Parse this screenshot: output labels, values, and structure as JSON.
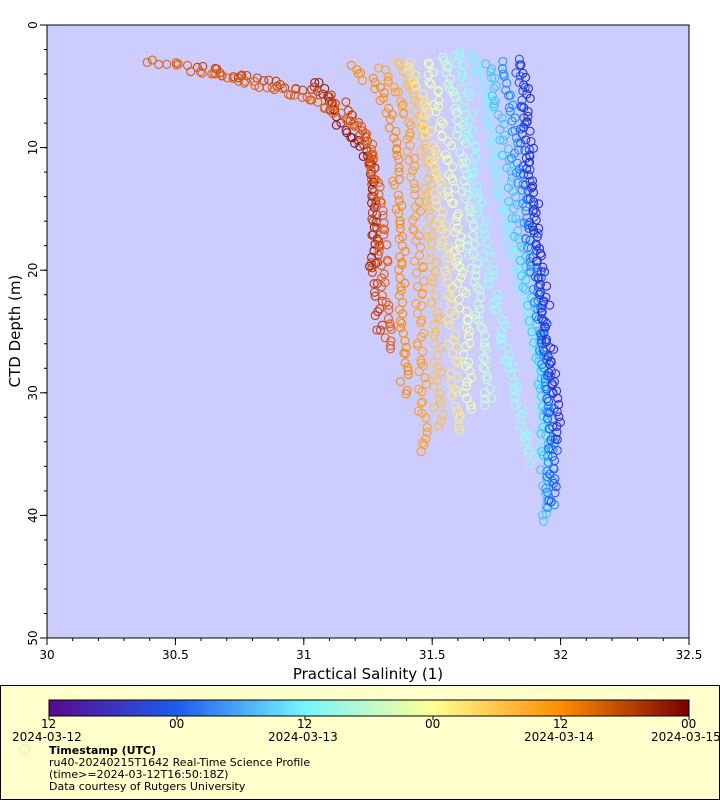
{
  "chart_data": {
    "type": "scatter",
    "title": "",
    "xlabel": "Practical Salinity (1)",
    "ylabel": "CTD Depth (m)",
    "xlim": [
      30,
      32.5
    ],
    "ylim": [
      0,
      50
    ],
    "y_inverted": true,
    "grid": false,
    "marker": "open-circle",
    "background_color": "#ccccff",
    "x_ticks": [
      "30",
      "30.5",
      "31",
      "31.5",
      "32",
      "32.5"
    ],
    "y_ticks": [
      "0",
      "10",
      "20",
      "30",
      "40",
      "50"
    ],
    "color_by": "Timestamp (UTC)",
    "colormap": [
      "#5a0a8c",
      "#1e5cf0",
      "#78f5ff",
      "#ffff96",
      "#ff8c00",
      "#780000"
    ],
    "colorbar_range": [
      "2024-03-12T12:00",
      "2024-03-15T00:00"
    ],
    "colorbar_time_ticks": [
      "12",
      "00",
      "12",
      "00",
      "12",
      "00"
    ],
    "colorbar_date_ticks": [
      "2024-03-12",
      "2024-03-13",
      "2024-03-14",
      "2024-03-15"
    ],
    "series": [
      {
        "time": "2024-03-14T23:00",
        "color": "#9a1800",
        "points": [
          [
            31.06,
            4.5
          ],
          [
            31.08,
            5.5
          ],
          [
            31.1,
            6.5
          ],
          [
            31.12,
            7.5
          ],
          [
            31.15,
            8.5
          ],
          [
            31.2,
            9.5
          ],
          [
            31.24,
            10.5
          ],
          [
            31.26,
            11.5
          ],
          [
            31.27,
            13
          ],
          [
            31.27,
            14.5
          ],
          [
            31.27,
            16
          ],
          [
            31.27,
            17.5
          ],
          [
            31.27,
            19
          ],
          [
            31.27,
            19.8
          ]
        ]
      },
      {
        "time": "2024-03-14T22:00",
        "color": "#c84000",
        "points": [
          [
            30.6,
            3.5
          ],
          [
            30.75,
            4.2
          ],
          [
            30.9,
            4.8
          ],
          [
            31.05,
            5.2
          ],
          [
            31.15,
            6.5
          ],
          [
            31.2,
            8.0
          ],
          [
            31.24,
            9.5
          ],
          [
            31.26,
            11.5
          ],
          [
            31.27,
            14
          ],
          [
            31.28,
            17
          ],
          [
            31.28,
            20
          ],
          [
            31.29,
            23
          ],
          [
            31.3,
            25.5
          ]
        ]
      },
      {
        "time": "2024-03-14T19:00",
        "color": "#e46010",
        "points": [
          [
            30.4,
            3.0
          ],
          [
            30.55,
            3.5
          ],
          [
            30.7,
            4.2
          ],
          [
            30.85,
            5.0
          ],
          [
            31.0,
            6.0
          ],
          [
            31.12,
            7.0
          ],
          [
            31.22,
            8.5
          ],
          [
            31.26,
            10
          ],
          [
            31.28,
            13
          ],
          [
            31.3,
            16
          ],
          [
            31.31,
            19
          ],
          [
            31.32,
            22
          ],
          [
            31.33,
            25
          ],
          [
            31.34,
            27
          ]
        ]
      },
      {
        "time": "2024-03-14T16:00",
        "color": "#ff8c00",
        "points": [
          [
            31.2,
            3.5
          ],
          [
            31.28,
            5
          ],
          [
            31.33,
            7
          ],
          [
            31.35,
            9
          ],
          [
            31.36,
            12
          ],
          [
            31.37,
            15
          ],
          [
            31.38,
            18
          ],
          [
            31.38,
            21
          ],
          [
            31.39,
            24
          ],
          [
            31.39,
            27
          ],
          [
            31.39,
            30.5
          ]
        ]
      },
      {
        "time": "2024-03-14T12:00",
        "color": "#ffa020",
        "points": [
          [
            31.3,
            3.5
          ],
          [
            31.37,
            6
          ],
          [
            31.41,
            9
          ],
          [
            31.43,
            12
          ],
          [
            31.44,
            16
          ],
          [
            31.45,
            20
          ],
          [
            31.45,
            24
          ],
          [
            31.46,
            28
          ],
          [
            31.46,
            31
          ],
          [
            31.47,
            34
          ],
          [
            31.47,
            35.5
          ]
        ]
      },
      {
        "time": "2024-03-14T08:00",
        "color": "#ffc040",
        "points": [
          [
            31.38,
            3
          ],
          [
            31.43,
            6
          ],
          [
            31.47,
            10
          ],
          [
            31.49,
            14
          ],
          [
            31.5,
            18
          ],
          [
            31.51,
            22
          ],
          [
            31.52,
            26
          ],
          [
            31.52,
            30
          ],
          [
            31.53,
            33
          ]
        ]
      },
      {
        "time": "2024-03-14T04:00",
        "color": "#ffe880",
        "points": [
          [
            31.42,
            3
          ],
          [
            31.46,
            6
          ],
          [
            31.5,
            10
          ],
          [
            31.53,
            14
          ],
          [
            31.55,
            18
          ],
          [
            31.57,
            22
          ],
          [
            31.58,
            26
          ],
          [
            31.59,
            30
          ],
          [
            31.6,
            33.5
          ]
        ]
      },
      {
        "time": "2024-03-14T00:00",
        "color": "#f0ffb0",
        "points": [
          [
            31.48,
            3
          ],
          [
            31.52,
            6
          ],
          [
            31.56,
            10
          ],
          [
            31.58,
            14
          ],
          [
            31.6,
            18
          ],
          [
            31.62,
            22
          ],
          [
            31.63,
            26
          ],
          [
            31.64,
            30
          ],
          [
            31.64,
            32
          ]
        ]
      },
      {
        "time": "2024-03-13T20:00",
        "color": "#c8ffd8",
        "points": [
          [
            31.55,
            2.5
          ],
          [
            31.58,
            5
          ],
          [
            31.61,
            9
          ],
          [
            31.63,
            13
          ],
          [
            31.65,
            17
          ],
          [
            31.67,
            21
          ],
          [
            31.69,
            25
          ],
          [
            31.71,
            29
          ],
          [
            31.72,
            31.5
          ]
        ]
      },
      {
        "time": "2024-03-13T16:00",
        "color": "#96fff0",
        "points": [
          [
            31.6,
            2
          ],
          [
            31.63,
            5
          ],
          [
            31.65,
            9
          ],
          [
            31.67,
            13
          ],
          [
            31.7,
            17
          ],
          [
            31.73,
            21
          ],
          [
            31.77,
            25
          ],
          [
            31.82,
            29
          ],
          [
            31.86,
            33
          ],
          [
            31.9,
            36
          ]
        ]
      },
      {
        "time": "2024-03-13T12:00",
        "color": "#78f5ff",
        "points": [
          [
            31.66,
            2.5
          ],
          [
            31.7,
            5
          ],
          [
            31.73,
            9
          ],
          [
            31.76,
            13
          ],
          [
            31.8,
            17
          ],
          [
            31.85,
            21
          ],
          [
            31.89,
            25
          ],
          [
            31.92,
            29
          ],
          [
            31.93,
            33
          ],
          [
            31.94,
            36
          ]
        ]
      },
      {
        "time": "2024-03-13T08:00",
        "color": "#40c8ff",
        "points": [
          [
            31.72,
            3
          ],
          [
            31.75,
            6
          ],
          [
            31.78,
            10
          ],
          [
            31.81,
            14
          ],
          [
            31.84,
            18
          ],
          [
            31.88,
            22
          ],
          [
            31.91,
            26
          ],
          [
            31.93,
            30
          ],
          [
            31.94,
            34
          ],
          [
            31.94,
            38
          ],
          [
            31.95,
            41
          ]
        ]
      },
      {
        "time": "2024-03-13T04:00",
        "color": "#2090ff",
        "points": [
          [
            31.78,
            3
          ],
          [
            31.8,
            6
          ],
          [
            31.82,
            10
          ],
          [
            31.85,
            14
          ],
          [
            31.88,
            18
          ],
          [
            31.91,
            22
          ],
          [
            31.93,
            26
          ],
          [
            31.95,
            30
          ],
          [
            31.96,
            34
          ],
          [
            31.96,
            37
          ],
          [
            31.96,
            40
          ]
        ]
      },
      {
        "time": "2024-03-13T00:00",
        "color": "#1e5cf0",
        "points": [
          [
            31.84,
            3
          ],
          [
            31.85,
            6
          ],
          [
            31.86,
            10
          ],
          [
            31.88,
            14
          ],
          [
            31.9,
            18
          ],
          [
            31.92,
            22
          ],
          [
            31.94,
            26
          ],
          [
            31.96,
            30
          ],
          [
            31.97,
            34
          ],
          [
            31.97,
            37
          ],
          [
            31.97,
            39.5
          ]
        ]
      },
      {
        "time": "2024-03-12T20:00",
        "color": "#3030c0",
        "points": [
          [
            31.86,
            3.5
          ],
          [
            31.87,
            7
          ],
          [
            31.88,
            11
          ],
          [
            31.9,
            15
          ],
          [
            31.92,
            19
          ],
          [
            31.94,
            23
          ],
          [
            31.96,
            27
          ],
          [
            31.98,
            31
          ],
          [
            31.99,
            34
          ]
        ]
      }
    ]
  },
  "legend": {
    "title": "Timestamp (UTC)",
    "line1": "ru40-20240215T1642 Real-Time Science Profile",
    "line2": "(time>=2024-03-12T16:50:18Z)",
    "line3": "Data courtesy of Rutgers University"
  }
}
